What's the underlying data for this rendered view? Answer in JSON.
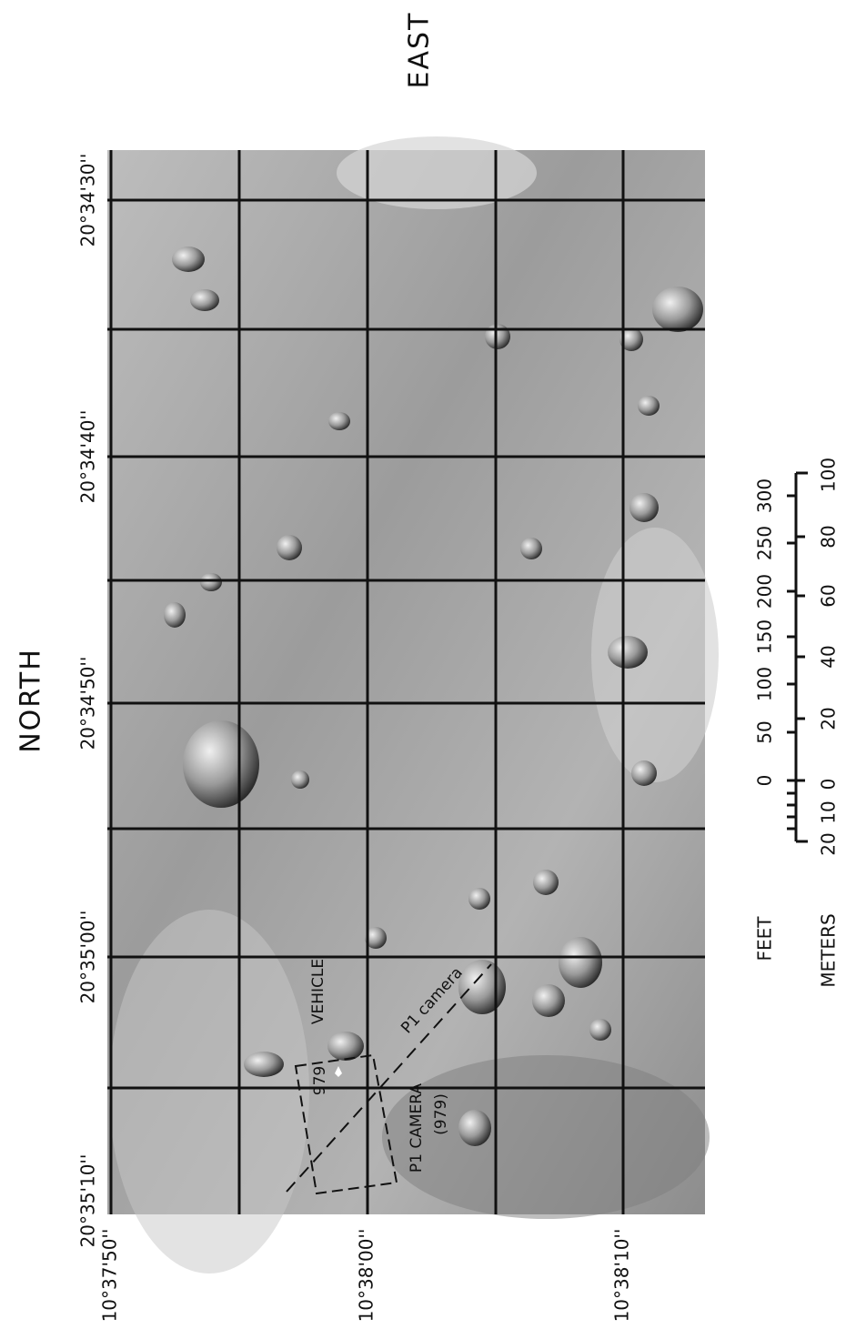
{
  "header": {
    "north": "NORTH",
    "east": "EAST"
  },
  "map": {
    "longitude_labels": [
      "20°34'30''",
      "20°34'40''",
      "20°34'50''",
      "20°35'00''",
      "20°35'10''"
    ],
    "latitude_labels": [
      "10°37'50''",
      "10°38'00''",
      "10°38'10''"
    ],
    "annotations": {
      "vehicle": "VEHICLE",
      "vehicle_frame": "979",
      "p1_camera": "P1 CAMERA",
      "p1_camera_frame": "(979)",
      "p1_camera_track": "P1 camera"
    }
  },
  "scale": {
    "feet": {
      "label": "FEET",
      "ticks": [
        "0",
        "50",
        "100",
        "150",
        "200",
        "250",
        "300"
      ]
    },
    "meters": {
      "label": "METERS",
      "ticks": [
        "20",
        "10",
        "0",
        "20",
        "40",
        "60",
        "80",
        "100"
      ]
    }
  }
}
